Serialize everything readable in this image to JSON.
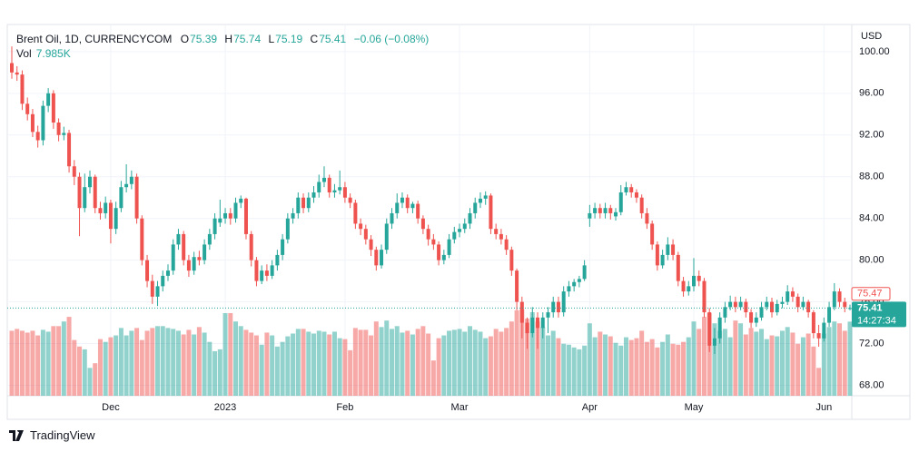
{
  "brand": "TradingView",
  "chart_data": {
    "type": "candlestick",
    "title": "Brent Oil, 1D, CURRENCYCOM",
    "currency": "USD",
    "ohlc_keys": [
      "O",
      "H",
      "L",
      "C"
    ],
    "change": "−0.06 (−0.08%)",
    "volume_key": "Vol",
    "volume_value_label": "7.985K",
    "up_color": "#26a69a",
    "down_color": "#ef5350",
    "grid": true,
    "ylim": [
      67,
      102.6
    ],
    "vlim": [
      0,
      40
    ],
    "yticks": [
      {
        "value": 68,
        "label": "68.00"
      },
      {
        "value": 72,
        "label": "72.00"
      },
      {
        "value": 76,
        "label": "76.00"
      },
      {
        "value": 80,
        "label": "80.00"
      },
      {
        "value": 84,
        "label": "84.00"
      },
      {
        "value": 88,
        "label": "88.00"
      },
      {
        "value": 92,
        "label": "92.00"
      },
      {
        "value": 96,
        "label": "96.00"
      },
      {
        "value": 100,
        "label": "100.00"
      }
    ],
    "xticks": [
      {
        "value": 19,
        "label": "Dec"
      },
      {
        "value": 41,
        "label": "2023"
      },
      {
        "value": 64,
        "label": "Feb"
      },
      {
        "value": 86,
        "label": "Mar"
      },
      {
        "value": 111,
        "label": "Apr"
      },
      {
        "value": 131,
        "label": "May"
      },
      {
        "value": 156,
        "label": "Jun"
      }
    ],
    "prev_close": 75.47,
    "countdown": "14:27:34",
    "ohlc": [
      [
        98.9,
        100.5,
        97.4,
        98.0
      ],
      [
        98.0,
        98.6,
        97.2,
        97.8
      ],
      [
        97.8,
        98.2,
        94.4,
        95.0
      ],
      [
        95.0,
        95.6,
        93.4,
        94.0
      ],
      [
        94.0,
        94.5,
        91.8,
        92.3
      ],
      [
        92.3,
        92.9,
        90.8,
        91.5
      ],
      [
        91.5,
        95.3,
        91.0,
        94.8
      ],
      [
        94.8,
        96.5,
        94.2,
        96.0
      ],
      [
        96.0,
        96.3,
        92.6,
        93.2
      ],
      [
        93.2,
        93.6,
        91.4,
        92.0
      ],
      [
        92.0,
        92.8,
        91.5,
        92.2
      ],
      [
        92.2,
        92.5,
        88.4,
        89.0
      ],
      [
        89.0,
        89.6,
        87.2,
        88.0
      ],
      [
        88.0,
        88.4,
        82.3,
        85.0
      ],
      [
        85.0,
        88.3,
        84.6,
        87.0
      ],
      [
        87.0,
        88.6,
        86.4,
        88.0
      ],
      [
        88.0,
        88.2,
        84.5,
        85.0
      ],
      [
        85.0,
        85.6,
        83.9,
        84.5
      ],
      [
        84.5,
        86.1,
        84.0,
        85.5
      ],
      [
        85.5,
        85.8,
        81.6,
        83.0
      ],
      [
        83.0,
        85.6,
        82.5,
        85.0
      ],
      [
        85.0,
        87.6,
        84.6,
        87.0
      ],
      [
        87.0,
        89.2,
        86.5,
        87.3
      ],
      [
        87.3,
        88.6,
        86.8,
        88.0
      ],
      [
        88.0,
        88.3,
        83.5,
        84.0
      ],
      [
        84.0,
        84.3,
        79.5,
        80.0
      ],
      [
        80.0,
        80.5,
        77.4,
        78.0
      ],
      [
        78.0,
        78.6,
        75.8,
        76.5
      ],
      [
        76.5,
        78.0,
        75.6,
        77.5
      ],
      [
        77.5,
        79.0,
        77.0,
        78.5
      ],
      [
        78.5,
        79.6,
        78.0,
        79.0
      ],
      [
        79.0,
        82.0,
        78.6,
        81.5
      ],
      [
        81.5,
        83.0,
        81.0,
        82.5
      ],
      [
        82.5,
        82.8,
        79.5,
        80.0
      ],
      [
        80.0,
        80.5,
        78.4,
        79.0
      ],
      [
        79.0,
        80.8,
        78.6,
        80.3
      ],
      [
        80.3,
        80.9,
        79.5,
        80.0
      ],
      [
        80.0,
        82.0,
        79.6,
        81.5
      ],
      [
        81.5,
        83.0,
        81.0,
        82.5
      ],
      [
        82.5,
        84.5,
        82.0,
        84.0
      ],
      [
        83.6,
        85.8,
        83.2,
        84.0
      ],
      [
        84.0,
        85.0,
        83.5,
        84.5
      ],
      [
        84.5,
        85.0,
        83.4,
        84.0
      ],
      [
        84.0,
        86.0,
        83.6,
        85.5
      ],
      [
        85.5,
        86.2,
        85.0,
        85.9
      ],
      [
        85.9,
        86.0,
        82.0,
        82.5
      ],
      [
        82.5,
        82.8,
        79.4,
        80.0
      ],
      [
        80.0,
        80.3,
        77.5,
        78.0
      ],
      [
        78.0,
        79.5,
        77.7,
        79.0
      ],
      [
        79.0,
        79.6,
        78.0,
        78.5
      ],
      [
        78.5,
        80.0,
        78.2,
        79.5
      ],
      [
        79.5,
        81.0,
        79.0,
        80.5
      ],
      [
        80.5,
        82.5,
        80.0,
        82.0
      ],
      [
        82.0,
        84.5,
        81.6,
        84.0
      ],
      [
        84.0,
        85.0,
        83.5,
        84.5
      ],
      [
        84.5,
        86.5,
        84.0,
        86.0
      ],
      [
        86.0,
        86.4,
        84.5,
        85.0
      ],
      [
        85.0,
        86.5,
        84.6,
        86.0
      ],
      [
        86.0,
        87.1,
        85.5,
        86.5
      ],
      [
        86.5,
        88.2,
        86.0,
        87.5
      ],
      [
        87.5,
        89.0,
        87.0,
        87.9
      ],
      [
        87.9,
        88.2,
        86.0,
        86.5
      ],
      [
        86.5,
        87.3,
        86.0,
        86.7
      ],
      [
        86.7,
        88.6,
        86.3,
        87.0
      ],
      [
        87.0,
        87.5,
        85.5,
        86.0
      ],
      [
        86.0,
        86.4,
        85.0,
        85.5
      ],
      [
        85.5,
        85.8,
        83.0,
        83.5
      ],
      [
        83.5,
        84.0,
        82.4,
        83.0
      ],
      [
        83.0,
        83.4,
        81.5,
        82.0
      ],
      [
        82.0,
        82.4,
        80.4,
        81.0
      ],
      [
        81.0,
        81.3,
        79.0,
        79.5
      ],
      [
        79.5,
        81.5,
        79.2,
        81.0
      ],
      [
        81.0,
        84.0,
        80.6,
        83.5
      ],
      [
        83.5,
        85.0,
        83.0,
        84.5
      ],
      [
        84.5,
        86.4,
        84.0,
        85.5
      ],
      [
        85.5,
        86.5,
        85.0,
        86.0
      ],
      [
        86.0,
        86.3,
        84.5,
        85.0
      ],
      [
        85.0,
        85.6,
        84.5,
        85.4
      ],
      [
        85.4,
        85.7,
        83.5,
        84.0
      ],
      [
        84.0,
        84.3,
        82.5,
        83.0
      ],
      [
        83.0,
        83.4,
        81.4,
        82.0
      ],
      [
        82.0,
        82.5,
        81.0,
        81.5
      ],
      [
        81.5,
        81.8,
        79.5,
        80.0
      ],
      [
        80.0,
        81.0,
        79.6,
        80.5
      ],
      [
        80.5,
        82.5,
        80.2,
        82.0
      ],
      [
        82.0,
        83.2,
        81.6,
        82.7
      ],
      [
        82.7,
        83.5,
        82.2,
        83.0
      ],
      [
        83.0,
        84.0,
        82.6,
        83.5
      ],
      [
        83.5,
        85.0,
        83.0,
        84.5
      ],
      [
        84.5,
        86.0,
        84.0,
        85.5
      ],
      [
        85.5,
        86.5,
        85.0,
        85.9
      ],
      [
        85.9,
        86.6,
        85.3,
        86.2
      ],
      [
        86.2,
        86.4,
        82.5,
        83.0
      ],
      [
        83.0,
        83.5,
        82.0,
        82.5
      ],
      [
        82.5,
        83.0,
        81.5,
        82.0
      ],
      [
        82.0,
        82.4,
        80.5,
        81.0
      ],
      [
        81.0,
        81.3,
        78.5,
        79.0
      ],
      [
        79.0,
        79.2,
        75.2,
        76.0
      ],
      [
        76.0,
        76.5,
        72.5,
        74.0
      ],
      [
        74.0,
        74.5,
        71.5,
        73.0
      ],
      [
        73.0,
        75.5,
        72.6,
        74.5
      ],
      [
        74.5,
        75.0,
        71.5,
        73.5
      ],
      [
        73.5,
        75.0,
        72.5,
        74.5
      ],
      [
        74.5,
        75.5,
        73.0,
        75.0
      ],
      [
        75.0,
        76.5,
        74.5,
        76.0
      ],
      [
        76.0,
        76.5,
        74.5,
        75.0
      ],
      [
        75.0,
        77.5,
        74.6,
        77.0
      ],
      [
        77.0,
        78.0,
        76.5,
        77.5
      ],
      [
        77.5,
        78.2,
        77.0,
        77.9
      ],
      [
        77.9,
        78.5,
        77.4,
        78.2
      ],
      [
        78.2,
        80.0,
        78.0,
        79.5
      ],
      [
        84.0,
        85.3,
        83.2,
        84.5
      ],
      [
        84.5,
        85.5,
        84.0,
        85.0
      ],
      [
        85.0,
        85.4,
        84.0,
        84.5
      ],
      [
        84.5,
        85.5,
        84.0,
        85.0
      ],
      [
        85.0,
        85.3,
        83.9,
        84.5
      ],
      [
        84.2,
        85.0,
        83.8,
        84.6
      ],
      [
        84.6,
        87.2,
        84.3,
        86.5
      ],
      [
        86.5,
        87.5,
        86.2,
        87.0
      ],
      [
        87.0,
        87.3,
        86.0,
        86.5
      ],
      [
        86.5,
        86.8,
        85.5,
        86.0
      ],
      [
        86.0,
        86.3,
        84.0,
        84.5
      ],
      [
        84.5,
        85.0,
        83.0,
        83.5
      ],
      [
        83.5,
        83.8,
        81.0,
        81.5
      ],
      [
        81.5,
        81.8,
        79.0,
        79.5
      ],
      [
        79.5,
        81.0,
        79.2,
        80.5
      ],
      [
        80.5,
        82.2,
        80.0,
        81.5
      ],
      [
        81.5,
        82.0,
        80.0,
        80.5
      ],
      [
        80.5,
        80.8,
        77.5,
        78.0
      ],
      [
        78.0,
        78.4,
        76.5,
        77.0
      ],
      [
        77.0,
        78.0,
        76.6,
        77.5
      ],
      [
        77.5,
        80.2,
        77.0,
        78.5
      ],
      [
        78.5,
        79.0,
        77.5,
        78.0
      ],
      [
        78.0,
        78.3,
        74.5,
        75.0
      ],
      [
        75.0,
        75.4,
        71.2,
        71.8
      ],
      [
        71.8,
        73.5,
        71.0,
        72.5
      ],
      [
        72.5,
        75.0,
        72.0,
        74.5
      ],
      [
        74.5,
        76.0,
        74.0,
        75.5
      ],
      [
        75.5,
        76.6,
        75.2,
        76.0
      ],
      [
        76.0,
        76.5,
        75.0,
        75.5
      ],
      [
        75.5,
        76.5,
        75.2,
        76.0
      ],
      [
        76.0,
        76.3,
        74.5,
        75.0
      ],
      [
        75.0,
        75.3,
        73.5,
        74.0
      ],
      [
        74.0,
        75.0,
        73.6,
        74.5
      ],
      [
        74.5,
        76.0,
        74.2,
        75.5
      ],
      [
        75.5,
        76.5,
        75.2,
        76.0
      ],
      [
        76.0,
        76.4,
        74.5,
        75.0
      ],
      [
        75.0,
        76.2,
        74.7,
        75.8
      ],
      [
        75.8,
        76.5,
        75.4,
        76.0
      ],
      [
        76.0,
        77.6,
        75.7,
        77.0
      ],
      [
        77.0,
        77.4,
        76.0,
        76.5
      ],
      [
        76.5,
        76.8,
        75.0,
        75.5
      ],
      [
        75.5,
        76.5,
        75.2,
        76.0
      ],
      [
        76.0,
        76.2,
        74.5,
        75.0
      ],
      [
        75.0,
        75.2,
        72.5,
        73.0
      ],
      [
        73.0,
        73.8,
        71.7,
        72.5
      ],
      [
        72.5,
        74.5,
        72.2,
        74.0
      ],
      [
        74.0,
        76.0,
        73.6,
        75.5
      ],
      [
        75.5,
        77.8,
        75.2,
        77.0
      ],
      [
        77.0,
        77.3,
        75.5,
        76.0
      ],
      [
        76.0,
        76.4,
        75.0,
        75.5
      ],
      [
        75.39,
        75.74,
        75.19,
        75.41
      ]
    ],
    "volume": [
      7.0,
      7.2,
      7.0,
      6.8,
      7.0,
      6.5,
      7.1,
      6.9,
      7.5,
      7.5,
      8.0,
      8.5,
      6.0,
      5.3,
      5.0,
      3.0,
      3.5,
      6.1,
      5.8,
      6.3,
      6.5,
      7.3,
      6.5,
      7.0,
      7.3,
      6.0,
      7.0,
      7.3,
      7.5,
      7.5,
      7.3,
      7.2,
      7.0,
      6.6,
      7.1,
      6.6,
      7.4,
      6.8,
      5.8,
      4.8,
      5.0,
      8.9,
      8.9,
      8.0,
      7.5,
      7.1,
      6.8,
      6.5,
      5.5,
      6.8,
      6.5,
      5.3,
      5.8,
      6.4,
      6.7,
      7.2,
      7.2,
      6.9,
      6.7,
      7.0,
      6.9,
      6.6,
      6.9,
      6.2,
      6.1,
      4.9,
      7.3,
      7.1,
      7.1,
      6.5,
      8.0,
      7.4,
      8.1,
      7.2,
      7.5,
      6.8,
      7.0,
      6.6,
      7.2,
      7.5,
      6.7,
      3.8,
      6.2,
      6.5,
      7.0,
      7.1,
      7.2,
      6.9,
      7.5,
      7.1,
      6.9,
      6.2,
      6.4,
      7.2,
      6.9,
      7.3,
      8.0,
      9.2,
      9.3,
      8.3,
      9.0,
      8.0,
      7.4,
      6.5,
      7.0,
      6.2,
      5.6,
      5.5,
      5.2,
      5.0,
      5.4,
      7.8,
      6.3,
      6.9,
      6.6,
      6.4,
      5.7,
      5.4,
      6.3,
      6.0,
      6.2,
      7.0,
      5.8,
      6.1,
      5.2,
      5.8,
      6.6,
      5.6,
      5.5,
      5.8,
      6.3,
      8.0,
      7.2,
      8.5,
      8.9,
      7.8,
      7.0,
      7.2,
      6.3,
      8.1,
      7.8,
      6.6,
      7.3,
      6.9,
      7.2,
      6.1,
      6.5,
      6.4,
      7.0,
      7.4,
      6.8,
      5.6,
      6.3,
      6.7,
      5.3,
      3.0,
      6.7,
      7.4,
      8.0,
      7.8,
      7.0,
      7.985
    ]
  }
}
